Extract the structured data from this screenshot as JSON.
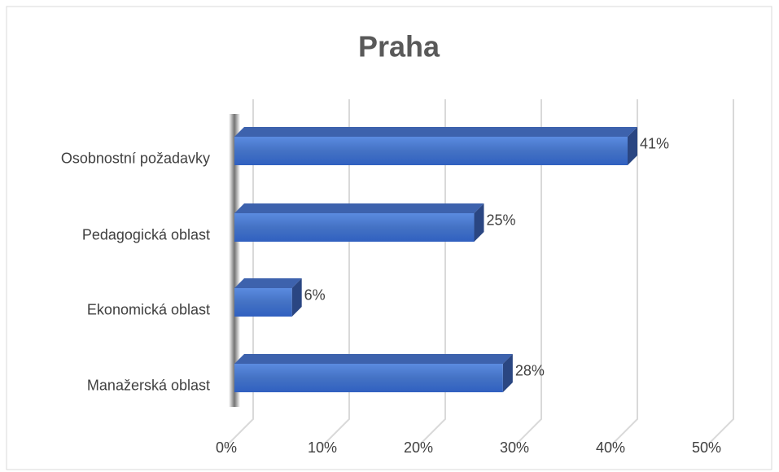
{
  "chart_data": {
    "type": "bar3d_horizontal",
    "title": "Praha",
    "categories": [
      "Osobnostní požadavky",
      "Pedagogická oblast",
      "Ekonomická oblast",
      "Manažerská oblast"
    ],
    "values": [
      41,
      25,
      6,
      28
    ],
    "value_labels": [
      "41%",
      "25%",
      "6%",
      "28%"
    ],
    "color": "#4472c4",
    "xlim": [
      0,
      50
    ],
    "xticks": [
      {
        "value": 0,
        "label": "0%"
      },
      {
        "value": 10,
        "label": "10%"
      },
      {
        "value": 20,
        "label": "20%"
      },
      {
        "value": 30,
        "label": "30%"
      },
      {
        "value": 40,
        "label": "40%"
      },
      {
        "value": 50,
        "label": "50%"
      }
    ],
    "grid": true
  }
}
